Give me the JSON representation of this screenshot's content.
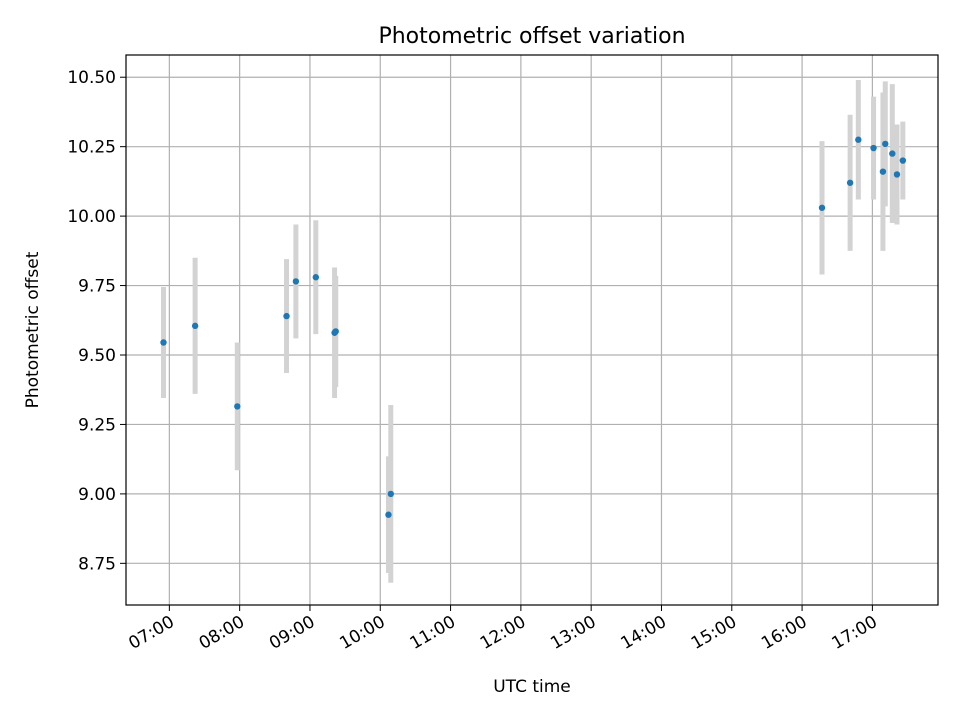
{
  "chart_data": {
    "type": "scatter",
    "title": "Photometric offset variation",
    "xlabel": "UTC time",
    "ylabel": "Photometric offset",
    "x_unit": "time of day (UTC)",
    "xlim": [
      "06:23",
      "17:56"
    ],
    "ylim": [
      8.6,
      10.58
    ],
    "x_ticks": [
      "07:00",
      "08:00",
      "09:00",
      "10:00",
      "11:00",
      "12:00",
      "13:00",
      "14:00",
      "15:00",
      "16:00",
      "17:00"
    ],
    "y_ticks": [
      "8.75",
      "9.00",
      "9.25",
      "9.50",
      "9.75",
      "10.00",
      "10.25",
      "10.50"
    ],
    "grid": true,
    "legend": "none",
    "colors": {
      "marker": "#1f77b4",
      "error_bar": "#d3d3d3"
    },
    "points": [
      {
        "x": "06:55",
        "y": 9.545,
        "err": 0.2
      },
      {
        "x": "07:22",
        "y": 9.605,
        "err": 0.245
      },
      {
        "x": "07:58",
        "y": 9.315,
        "err": 0.23
      },
      {
        "x": "08:40",
        "y": 9.64,
        "err": 0.205
      },
      {
        "x": "08:48",
        "y": 9.765,
        "err": 0.205
      },
      {
        "x": "09:05",
        "y": 9.78,
        "err": 0.205
      },
      {
        "x": "09:21",
        "y": 9.58,
        "err": 0.235
      },
      {
        "x": "09:22",
        "y": 9.585,
        "err": 0.2
      },
      {
        "x": "10:07",
        "y": 8.925,
        "err": 0.21
      },
      {
        "x": "10:09",
        "y": 9.0,
        "err": 0.32
      },
      {
        "x": "16:17",
        "y": 10.03,
        "err": 0.24
      },
      {
        "x": "16:41",
        "y": 10.12,
        "err": 0.245
      },
      {
        "x": "16:48",
        "y": 10.275,
        "err": 0.215
      },
      {
        "x": "17:01",
        "y": 10.245,
        "err": 0.185
      },
      {
        "x": "17:09",
        "y": 10.16,
        "err": 0.285
      },
      {
        "x": "17:11",
        "y": 10.26,
        "err": 0.225
      },
      {
        "x": "17:17",
        "y": 10.225,
        "err": 0.25
      },
      {
        "x": "17:21",
        "y": 10.15,
        "err": 0.18
      },
      {
        "x": "17:26",
        "y": 10.2,
        "err": 0.14
      }
    ]
  }
}
